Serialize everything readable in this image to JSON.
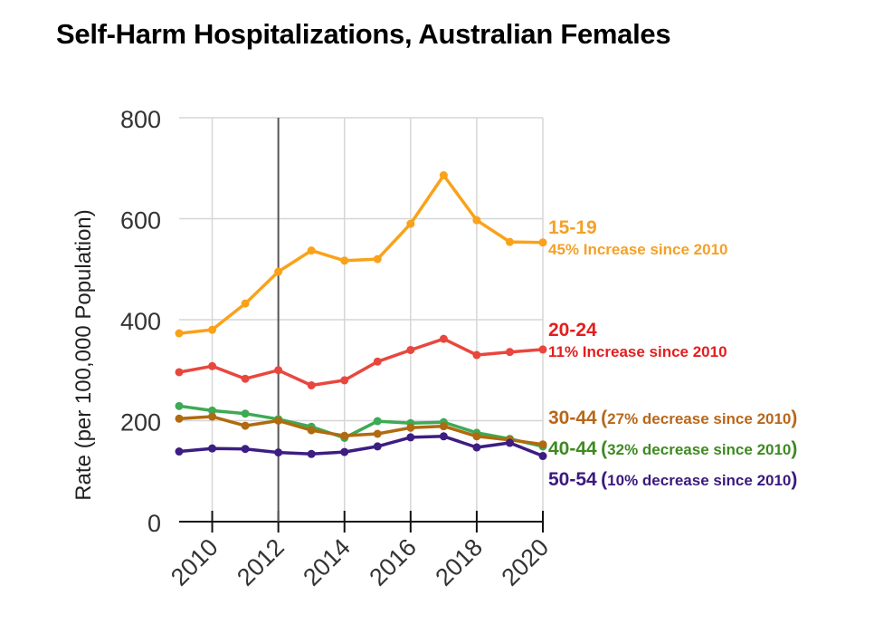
{
  "chart_data": {
    "type": "line",
    "title": "Self-Harm Hospitalizations, Australian Females",
    "ylabel": "Rate (per 100,000 Population)",
    "xlabel": "",
    "x": [
      2009,
      2010,
      2011,
      2012,
      2013,
      2014,
      2015,
      2016,
      2017,
      2018,
      2019,
      2020
    ],
    "xlim": [
      2009,
      2020
    ],
    "ylim": [
      0,
      800
    ],
    "xticks": [
      "2010",
      "2012",
      "2014",
      "2016",
      "2018",
      "2020"
    ],
    "yticks": [
      "0",
      "200",
      "400",
      "600",
      "800"
    ],
    "grid": true,
    "reference_line_x": 2012,
    "series": [
      {
        "name": "15-19",
        "color": "#f9a21a",
        "values": [
          373,
          380,
          432,
          495,
          537,
          517,
          520,
          590,
          686,
          597,
          554,
          553
        ]
      },
      {
        "name": "20-24",
        "color": "#e8473e",
        "values": [
          296,
          308,
          283,
          300,
          270,
          280,
          317,
          340,
          362,
          330,
          336,
          341
        ]
      },
      {
        "name": "40-44",
        "color": "#3daa55",
        "values": [
          229,
          220,
          214,
          203,
          188,
          166,
          199,
          195,
          197,
          176,
          164,
          149
        ]
      },
      {
        "name": "30-44",
        "color": "#b06a10",
        "values": [
          204,
          208,
          190,
          200,
          181,
          170,
          174,
          186,
          189,
          169,
          162,
          153
        ]
      },
      {
        "name": "50-54",
        "color": "#3d1d82",
        "values": [
          139,
          145,
          144,
          137,
          134,
          138,
          149,
          167,
          169,
          147,
          156,
          130
        ]
      }
    ],
    "annotations": [
      {
        "label": "15-19",
        "text": "45% Increase since 2010",
        "color": "#f4a128"
      },
      {
        "label": "20-24",
        "text": "11% Increase since 2010",
        "color": "#e41e1e"
      },
      {
        "label": "30-44",
        "open": "(",
        "text": "27% decrease since 2010",
        "close": ")",
        "color": "#b8671a"
      },
      {
        "label": "40-44",
        "open": "(",
        "text": "32% decrease since 2010",
        "close": ")",
        "color": "#3e8a22"
      },
      {
        "label": "50-54",
        "open": "(",
        "text": "10% decrease since 2010",
        "close": ")",
        "color": "#3b1a7e"
      }
    ]
  }
}
